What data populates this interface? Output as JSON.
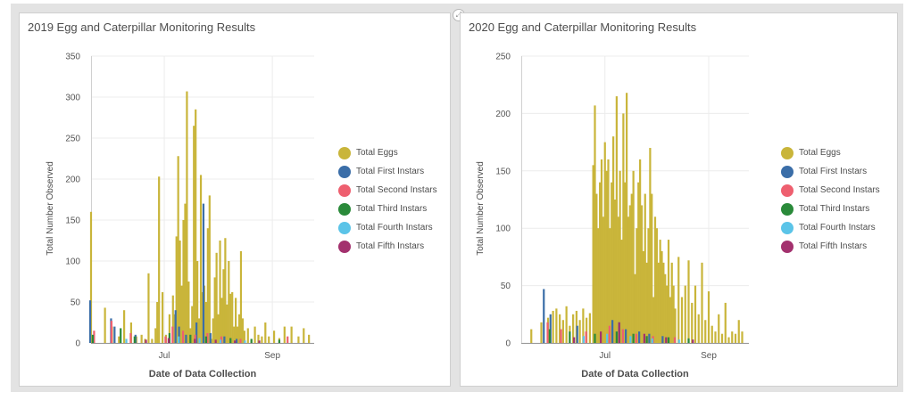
{
  "colors": {
    "eggs": "#c9b53a",
    "first": "#3b6ea8",
    "second": "#ee5f6f",
    "third": "#2a8a3a",
    "fourth": "#5bc4e8",
    "fifth": "#a3316e"
  },
  "legend": [
    {
      "label": "Total Eggs",
      "color": "#c9b53a"
    },
    {
      "label": "Total First Instars",
      "color": "#3b6ea8"
    },
    {
      "label": "Total Second Instars",
      "color": "#ee5f6f"
    },
    {
      "label": "Total Third Instars",
      "color": "#2a8a3a"
    },
    {
      "label": "Total Fourth Instars",
      "color": "#5bc4e8"
    },
    {
      "label": "Total Fifth Instars",
      "color": "#a3316e"
    }
  ],
  "expand_icon": "expand-icon",
  "chart_data": [
    {
      "type": "bar",
      "title": "2019 Egg and Caterpillar Monitoring Results",
      "xlabel": "Date of Data Collection",
      "ylabel": "Total Number Observed",
      "ylim": [
        0,
        350
      ],
      "yticks": [
        0,
        50,
        100,
        150,
        200,
        250,
        300,
        350
      ],
      "xlim": [
        "2019-05-20",
        "2019-09-25"
      ],
      "xticks": [
        {
          "label": "Jul",
          "date": "2019-07-01"
        },
        {
          "label": "Sep",
          "date": "2019-09-01"
        }
      ],
      "grid": true,
      "legend_position": "right",
      "series": [
        {
          "name": "Total Eggs",
          "dates": [
            "2019-05-20",
            "2019-05-28",
            "2019-06-01",
            "2019-06-05",
            "2019-06-08",
            "2019-06-12",
            "2019-06-15",
            "2019-06-18",
            "2019-06-20",
            "2019-06-22",
            "2019-06-24",
            "2019-06-26",
            "2019-06-27",
            "2019-06-28",
            "2019-06-30",
            "2019-07-02",
            "2019-07-04",
            "2019-07-06",
            "2019-07-07",
            "2019-07-08",
            "2019-07-09",
            "2019-07-10",
            "2019-07-11",
            "2019-07-12",
            "2019-07-13",
            "2019-07-14",
            "2019-07-15",
            "2019-07-16",
            "2019-07-17",
            "2019-07-18",
            "2019-07-19",
            "2019-07-20",
            "2019-07-21",
            "2019-07-22",
            "2019-07-23",
            "2019-07-24",
            "2019-07-25",
            "2019-07-26",
            "2019-07-27",
            "2019-07-28",
            "2019-07-29",
            "2019-07-30",
            "2019-07-31",
            "2019-08-01",
            "2019-08-02",
            "2019-08-03",
            "2019-08-04",
            "2019-08-05",
            "2019-08-06",
            "2019-08-07",
            "2019-08-08",
            "2019-08-09",
            "2019-08-10",
            "2019-08-11",
            "2019-08-12",
            "2019-08-13",
            "2019-08-14",
            "2019-08-15",
            "2019-08-16",
            "2019-08-18",
            "2019-08-20",
            "2019-08-22",
            "2019-08-24",
            "2019-08-26",
            "2019-08-28",
            "2019-08-30",
            "2019-09-02",
            "2019-09-05",
            "2019-09-08",
            "2019-09-12",
            "2019-09-16",
            "2019-09-19",
            "2019-09-22"
          ],
          "values": [
            160,
            43,
            20,
            8,
            40,
            25,
            8,
            10,
            5,
            85,
            5,
            18,
            50,
            203,
            62,
            10,
            35,
            58,
            35,
            130,
            228,
            125,
            70,
            150,
            170,
            307,
            75,
            18,
            45,
            265,
            285,
            100,
            30,
            205,
            62,
            70,
            50,
            140,
            180,
            5,
            30,
            80,
            110,
            35,
            125,
            55,
            90,
            128,
            47,
            100,
            60,
            62,
            20,
            55,
            20,
            35,
            112,
            30,
            15,
            18,
            4,
            20,
            10,
            8,
            25,
            8,
            15,
            6,
            20,
            20,
            8,
            18,
            10
          ]
        },
        {
          "name": "Total First Instars",
          "dates": [
            "2019-05-20",
            "2019-06-01",
            "2019-06-03",
            "2019-06-15",
            "2019-07-08",
            "2019-07-10",
            "2019-07-14",
            "2019-07-20",
            "2019-07-24",
            "2019-07-28",
            "2019-08-05",
            "2019-08-12"
          ],
          "values": [
            52,
            30,
            20,
            10,
            40,
            20,
            10,
            25,
            170,
            12,
            8,
            5
          ]
        },
        {
          "name": "Total Second Instars",
          "dates": [
            "2019-05-22",
            "2019-06-01",
            "2019-06-12",
            "2019-07-02",
            "2019-07-06",
            "2019-07-12",
            "2019-07-19",
            "2019-07-26",
            "2019-08-03",
            "2019-08-14",
            "2019-09-10"
          ],
          "values": [
            15,
            27,
            12,
            8,
            20,
            15,
            10,
            12,
            8,
            5,
            8
          ]
        },
        {
          "name": "Total Third Instars",
          "dates": [
            "2019-05-21",
            "2019-06-06",
            "2019-06-14",
            "2019-07-04",
            "2019-07-16",
            "2019-07-25",
            "2019-08-08",
            "2019-08-20",
            "2019-09-05"
          ],
          "values": [
            10,
            18,
            8,
            12,
            10,
            8,
            6,
            5,
            4
          ]
        },
        {
          "name": "Total Fourth Instars",
          "dates": [
            "2019-06-09",
            "2019-07-09",
            "2019-07-21",
            "2019-08-02",
            "2019-08-16"
          ],
          "values": [
            5,
            8,
            6,
            4,
            3
          ]
        },
        {
          "name": "Total Fifth Instars",
          "dates": [
            "2019-06-20",
            "2019-07-03",
            "2019-07-18",
            "2019-07-30",
            "2019-08-10",
            "2019-08-24"
          ],
          "values": [
            4,
            6,
            5,
            4,
            3,
            3
          ]
        }
      ]
    },
    {
      "type": "bar",
      "title": "2020 Egg and Caterpillar Monitoring Results",
      "xlabel": "Date of Data Collection",
      "ylabel": "Total Number Observed",
      "ylim": [
        0,
        250
      ],
      "yticks": [
        0,
        50,
        100,
        150,
        200,
        250
      ],
      "xlim": [
        "2020-05-12",
        "2020-09-25"
      ],
      "xticks": [
        {
          "label": "Jul",
          "date": "2020-07-01"
        },
        {
          "label": "Sep",
          "date": "2020-09-01"
        }
      ],
      "grid": true,
      "legend_position": "right",
      "series": [
        {
          "name": "Total Eggs",
          "dates": [
            "2020-05-18",
            "2020-05-24",
            "2020-05-28",
            "2020-05-31",
            "2020-06-02",
            "2020-06-04",
            "2020-06-06",
            "2020-06-08",
            "2020-06-10",
            "2020-06-12",
            "2020-06-14",
            "2020-06-16",
            "2020-06-18",
            "2020-06-20",
            "2020-06-22",
            "2020-06-24",
            "2020-06-25",
            "2020-06-26",
            "2020-06-27",
            "2020-06-28",
            "2020-06-29",
            "2020-06-30",
            "2020-07-01",
            "2020-07-02",
            "2020-07-03",
            "2020-07-04",
            "2020-07-05",
            "2020-07-06",
            "2020-07-07",
            "2020-07-08",
            "2020-07-09",
            "2020-07-10",
            "2020-07-11",
            "2020-07-12",
            "2020-07-13",
            "2020-07-14",
            "2020-07-15",
            "2020-07-16",
            "2020-07-17",
            "2020-07-18",
            "2020-07-19",
            "2020-07-20",
            "2020-07-21",
            "2020-07-22",
            "2020-07-23",
            "2020-07-24",
            "2020-07-25",
            "2020-07-26",
            "2020-07-27",
            "2020-07-28",
            "2020-07-29",
            "2020-07-30",
            "2020-07-31",
            "2020-08-01",
            "2020-08-02",
            "2020-08-03",
            "2020-08-04",
            "2020-08-05",
            "2020-08-06",
            "2020-08-07",
            "2020-08-08",
            "2020-08-09",
            "2020-08-10",
            "2020-08-11",
            "2020-08-12",
            "2020-08-14",
            "2020-08-16",
            "2020-08-18",
            "2020-08-20",
            "2020-08-22",
            "2020-08-24",
            "2020-08-26",
            "2020-08-28",
            "2020-08-30",
            "2020-09-01",
            "2020-09-03",
            "2020-09-05",
            "2020-09-07",
            "2020-09-09",
            "2020-09-11",
            "2020-09-13",
            "2020-09-15",
            "2020-09-17",
            "2020-09-19",
            "2020-09-21"
          ],
          "values": [
            12,
            18,
            22,
            28,
            30,
            25,
            20,
            32,
            15,
            25,
            28,
            20,
            30,
            22,
            26,
            155,
            207,
            130,
            100,
            140,
            160,
            110,
            175,
            150,
            160,
            100,
            140,
            180,
            125,
            215,
            110,
            150,
            90,
            200,
            140,
            218,
            110,
            120,
            130,
            150,
            60,
            100,
            140,
            160,
            120,
            80,
            130,
            70,
            100,
            170,
            130,
            40,
            110,
            100,
            70,
            90,
            80,
            70,
            60,
            50,
            90,
            40,
            70,
            50,
            30,
            75,
            40,
            50,
            72,
            35,
            50,
            25,
            70,
            20,
            45,
            15,
            10,
            25,
            8,
            35,
            5,
            10,
            8,
            20,
            10
          ]
        },
        {
          "name": "Total First Instars",
          "dates": [
            "2020-05-26",
            "2020-05-30",
            "2020-06-15",
            "2020-07-06",
            "2020-07-10",
            "2020-07-14",
            "2020-07-22",
            "2020-07-28",
            "2020-08-05"
          ],
          "values": [
            47,
            25,
            15,
            20,
            18,
            12,
            10,
            8,
            6
          ]
        },
        {
          "name": "Total Second Instars",
          "dates": [
            "2020-05-28",
            "2020-06-05",
            "2020-06-20",
            "2020-07-04",
            "2020-07-12",
            "2020-07-20",
            "2020-07-30",
            "2020-08-12"
          ],
          "values": [
            18,
            12,
            10,
            15,
            12,
            8,
            6,
            5
          ]
        },
        {
          "name": "Total Third Instars",
          "dates": [
            "2020-05-29",
            "2020-06-10",
            "2020-06-25",
            "2020-07-08",
            "2020-07-18",
            "2020-07-26",
            "2020-08-08",
            "2020-08-20"
          ],
          "values": [
            12,
            10,
            8,
            10,
            8,
            6,
            5,
            4
          ]
        },
        {
          "name": "Total Fourth Instars",
          "dates": [
            "2020-06-18",
            "2020-07-02",
            "2020-07-16",
            "2020-07-29",
            "2020-08-14"
          ],
          "values": [
            6,
            8,
            6,
            4,
            3
          ]
        },
        {
          "name": "Total Fifth Instars",
          "dates": [
            "2020-06-12",
            "2020-06-28",
            "2020-07-09",
            "2020-07-24",
            "2020-08-06",
            "2020-08-22"
          ],
          "values": [
            5,
            10,
            18,
            8,
            5,
            3
          ]
        }
      ]
    }
  ]
}
